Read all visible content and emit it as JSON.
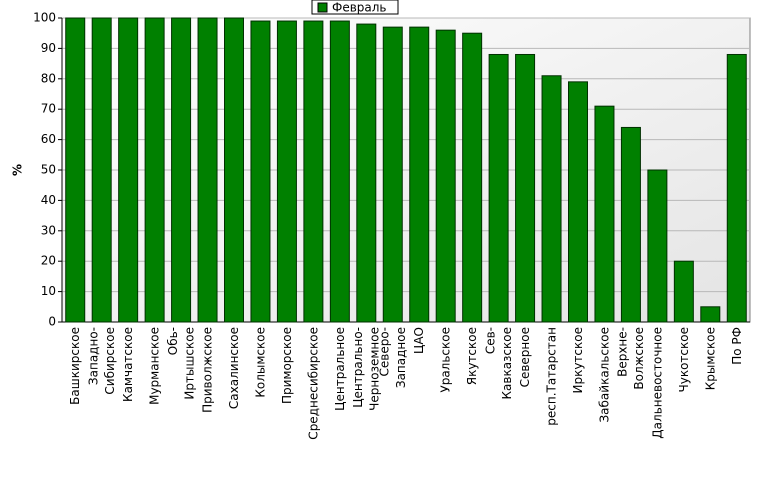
{
  "chart_data": {
    "type": "bar",
    "y_label": "%",
    "series": [
      {
        "name": "Февраль",
        "color": "#008000",
        "values": [
          100,
          100,
          100,
          100,
          100,
          100,
          100,
          99,
          99,
          99,
          99,
          98,
          97,
          97,
          96,
          95,
          88,
          88,
          81,
          79,
          71,
          64,
          50,
          20,
          5,
          88
        ]
      }
    ],
    "categories": [
      [
        "Башкирское"
      ],
      [
        "Западно-",
        "Сибирское"
      ],
      [
        "Камчатское"
      ],
      [
        "Мурманское"
      ],
      [
        "Обь-",
        "Иртышское"
      ],
      [
        "Приволжское"
      ],
      [
        "Сахалинское"
      ],
      [
        "Колымское"
      ],
      [
        "Приморское"
      ],
      [
        "Среднесибирское"
      ],
      [
        "Центральное"
      ],
      [
        "Центрально-",
        "Черноземное"
      ],
      [
        "Северо-",
        "Западное"
      ],
      [
        "ЦАО"
      ],
      [
        "Уральское"
      ],
      [
        "Якутское"
      ],
      [
        "Сев-",
        "Кавказское"
      ],
      [
        "Северное"
      ],
      [
        "респ.Татарстан"
      ],
      [
        "Иркутское"
      ],
      [
        "Забайкальское"
      ],
      [
        "Верхне-",
        "Волжское"
      ],
      [
        "Дальневосточное"
      ],
      [
        "Чукотское"
      ],
      [
        "Крымское"
      ],
      [
        "По РФ"
      ]
    ],
    "ylim": [
      0,
      100
    ],
    "yticks": [
      0,
      10,
      20,
      30,
      40,
      50,
      60,
      70,
      80,
      90,
      100
    ],
    "grid": true,
    "legend": "top"
  }
}
